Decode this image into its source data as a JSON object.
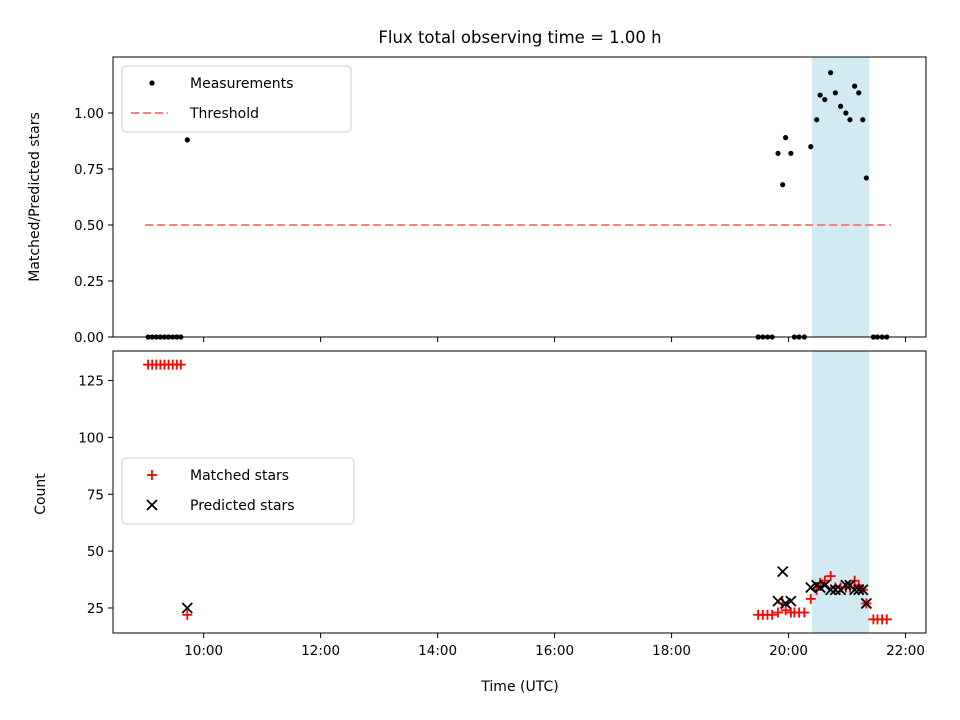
{
  "chart_data": [
    {
      "type": "scatter",
      "title": "Flux total observing time = 1.00 h",
      "xlabel": "",
      "ylabel": "Matched/Predicted stars",
      "xlim_hours": [
        8.45,
        22.35
      ],
      "ylim": [
        0,
        1.25
      ],
      "yticks": [
        "0.00",
        "0.25",
        "0.50",
        "0.75",
        "1.00"
      ],
      "yticks_values": [
        0,
        0.25,
        0.5,
        0.75,
        1.0
      ],
      "legend": {
        "placement": "upper-left",
        "entries": [
          "Measurements",
          "Threshold"
        ]
      },
      "highlight_span": {
        "x_start": 20.4,
        "x_end": 21.38,
        "color": "#add8e6"
      },
      "threshold": {
        "name": "Threshold",
        "y": 0.5,
        "x_start": 9.0,
        "x_end": 21.75,
        "color": "#ff7f7f"
      },
      "series": [
        {
          "name": "Measurements",
          "color": "#000000",
          "x": [
            9.05,
            9.12,
            9.19,
            9.26,
            9.33,
            9.4,
            9.47,
            9.54,
            9.61,
            9.72,
            19.48,
            19.56,
            19.64,
            19.72,
            19.82,
            19.9,
            19.95,
            20.04,
            20.1,
            20.18,
            20.27,
            20.38,
            20.48,
            20.54,
            20.62,
            20.72,
            20.8,
            20.89,
            20.98,
            21.05,
            21.13,
            21.2,
            21.27,
            21.33,
            21.45,
            21.52,
            21.6,
            21.68
          ],
          "y": [
            0,
            0,
            0,
            0,
            0,
            0,
            0,
            0,
            0,
            0.88,
            0,
            0,
            0,
            0,
            0.82,
            0.68,
            0.89,
            0.82,
            0,
            0,
            0,
            0.85,
            0.97,
            1.08,
            1.06,
            1.18,
            1.09,
            1.03,
            1.0,
            0.97,
            1.12,
            1.09,
            0.97,
            0.71,
            0,
            0,
            0,
            0
          ]
        }
      ]
    },
    {
      "type": "scatter",
      "title": "",
      "xlabel": "Time (UTC)",
      "ylabel": "Count",
      "xlim_hours": [
        8.45,
        22.35
      ],
      "xticks": [
        "10:00",
        "12:00",
        "14:00",
        "16:00",
        "18:00",
        "20:00",
        "22:00"
      ],
      "xticks_hours": [
        10,
        12,
        14,
        16,
        18,
        20,
        22
      ],
      "ylim": [
        14,
        138
      ],
      "yticks": [
        "25",
        "50",
        "75",
        "100",
        "125"
      ],
      "yticks_values": [
        25,
        50,
        75,
        100,
        125
      ],
      "legend": {
        "placement": "center-left",
        "entries": [
          "Matched stars",
          "Predicted stars"
        ]
      },
      "highlight_span": {
        "x_start": 20.4,
        "x_end": 21.38,
        "color": "#add8e6"
      },
      "series": [
        {
          "name": "Matched stars",
          "color": "#ff0000",
          "x": [
            9.05,
            9.12,
            9.19,
            9.26,
            9.33,
            9.4,
            9.47,
            9.54,
            9.61,
            9.72,
            19.48,
            19.56,
            19.64,
            19.72,
            19.82,
            19.9,
            19.95,
            20.04,
            20.1,
            20.18,
            20.27,
            20.38,
            20.48,
            20.54,
            20.62,
            20.72,
            20.8,
            20.89,
            20.98,
            21.05,
            21.13,
            21.2,
            21.27,
            21.33,
            21.45,
            21.52,
            21.6,
            21.68
          ],
          "y": [
            132,
            132,
            132,
            132,
            132,
            132,
            132,
            132,
            132,
            22,
            22,
            22,
            22,
            22,
            23,
            27,
            24,
            23,
            23,
            23,
            23,
            29,
            33,
            36,
            37,
            39,
            34,
            34,
            34,
            34,
            37,
            35,
            33,
            27,
            20,
            20,
            20,
            20
          ]
        },
        {
          "name": "Predicted stars",
          "color": "#000000",
          "x": [
            9.72,
            19.82,
            19.9,
            19.95,
            20.04,
            20.38,
            20.48,
            20.54,
            20.62,
            20.72,
            20.8,
            20.89,
            20.98,
            21.05,
            21.13,
            21.2,
            21.27,
            21.33
          ],
          "y": [
            25,
            28,
            41,
            27,
            28,
            34,
            35,
            34,
            35,
            33,
            33,
            33,
            35,
            35,
            33,
            33,
            33,
            27
          ]
        }
      ]
    }
  ]
}
